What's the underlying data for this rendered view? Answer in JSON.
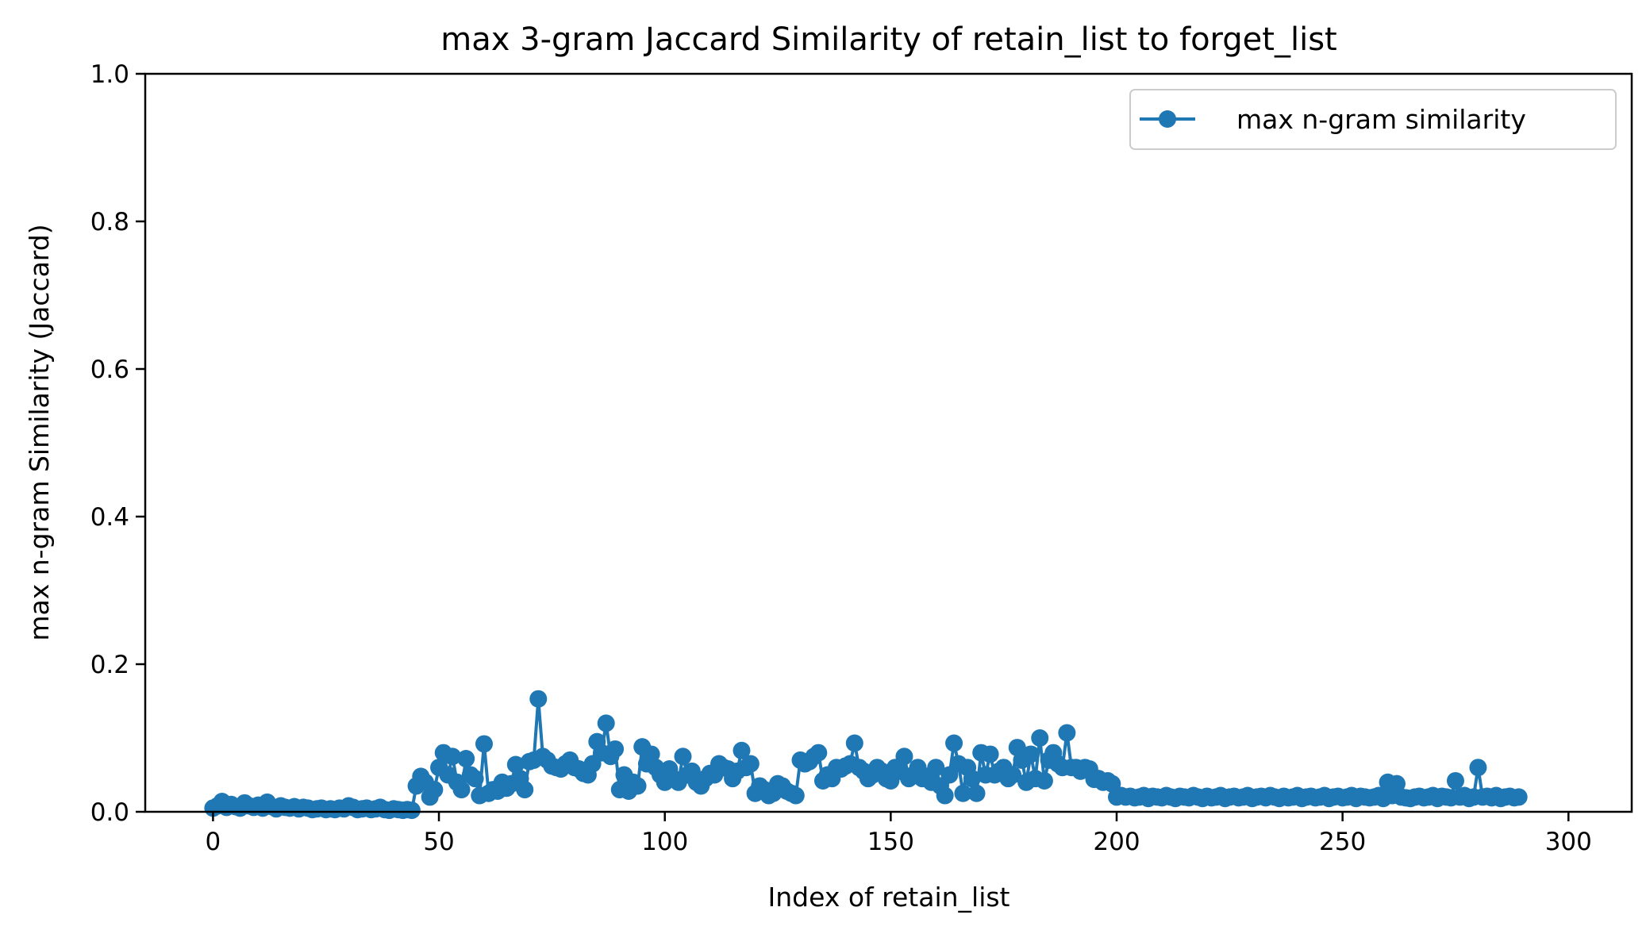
{
  "chart_data": {
    "type": "line",
    "title": "max 3-gram Jaccard Similarity of retain_list to forget_list",
    "xlabel": "Index of retain_list",
    "ylabel": "max n-gram Similarity (Jaccard)",
    "xlim": [
      -15,
      314
    ],
    "ylim": [
      0,
      1.0
    ],
    "xticks": [
      0,
      50,
      100,
      150,
      200,
      250,
      300
    ],
    "xtick_labels": [
      "0",
      "50",
      "100",
      "150",
      "200",
      "250",
      "300"
    ],
    "yticks": [
      0.0,
      0.2,
      0.4,
      0.6,
      0.8,
      1.0
    ],
    "ytick_labels": [
      "0.0",
      "0.2",
      "0.4",
      "0.6",
      "0.8",
      "1.0"
    ],
    "grid": false,
    "legend": {
      "position": "top-right",
      "entries": [
        "max n-gram similarity"
      ]
    },
    "series": [
      {
        "name": "max n-gram similarity",
        "color": "#1f77b4",
        "marker": "circle",
        "x_start": 0,
        "x_step": 1,
        "values": [
          0.005,
          0.008,
          0.014,
          0.006,
          0.01,
          0.007,
          0.005,
          0.012,
          0.008,
          0.006,
          0.009,
          0.005,
          0.013,
          0.007,
          0.004,
          0.008,
          0.006,
          0.005,
          0.007,
          0.004,
          0.006,
          0.005,
          0.003,
          0.004,
          0.005,
          0.003,
          0.004,
          0.003,
          0.005,
          0.004,
          0.008,
          0.006,
          0.003,
          0.004,
          0.005,
          0.003,
          0.004,
          0.006,
          0.003,
          0.002,
          0.004,
          0.003,
          0.002,
          0.003,
          0.002,
          0.035,
          0.048,
          0.04,
          0.02,
          0.03,
          0.06,
          0.08,
          0.05,
          0.075,
          0.04,
          0.03,
          0.072,
          0.05,
          0.045,
          0.022,
          0.092,
          0.025,
          0.03,
          0.028,
          0.04,
          0.032,
          0.038,
          0.064,
          0.045,
          0.03,
          0.068,
          0.07,
          0.153,
          0.075,
          0.07,
          0.062,
          0.06,
          0.058,
          0.065,
          0.07,
          0.06,
          0.058,
          0.052,
          0.05,
          0.065,
          0.095,
          0.08,
          0.12,
          0.075,
          0.085,
          0.03,
          0.05,
          0.028,
          0.04,
          0.035,
          0.088,
          0.065,
          0.078,
          0.06,
          0.05,
          0.04,
          0.058,
          0.045,
          0.04,
          0.075,
          0.05,
          0.055,
          0.04,
          0.035,
          0.045,
          0.052,
          0.05,
          0.065,
          0.06,
          0.058,
          0.045,
          0.055,
          0.083,
          0.06,
          0.065,
          0.025,
          0.035,
          0.03,
          0.022,
          0.025,
          0.038,
          0.035,
          0.028,
          0.025,
          0.022,
          0.07,
          0.065,
          0.068,
          0.075,
          0.08,
          0.042,
          0.05,
          0.045,
          0.06,
          0.058,
          0.062,
          0.065,
          0.093,
          0.06,
          0.055,
          0.045,
          0.05,
          0.06,
          0.055,
          0.045,
          0.042,
          0.06,
          0.055,
          0.075,
          0.045,
          0.05,
          0.06,
          0.045,
          0.048,
          0.04,
          0.06,
          0.035,
          0.022,
          0.05,
          0.093,
          0.065,
          0.025,
          0.06,
          0.045,
          0.025,
          0.08,
          0.05,
          0.078,
          0.05,
          0.055,
          0.06,
          0.045,
          0.05,
          0.087,
          0.07,
          0.04,
          0.078,
          0.045,
          0.1,
          0.042,
          0.07,
          0.08,
          0.065,
          0.06,
          0.107,
          0.06,
          0.06,
          0.055,
          0.06,
          0.058,
          0.044,
          0.045,
          0.04,
          0.042,
          0.038,
          0.02,
          0.022,
          0.02,
          0.021,
          0.019,
          0.02,
          0.022,
          0.018,
          0.021,
          0.02,
          0.019,
          0.022,
          0.02,
          0.018,
          0.021,
          0.02,
          0.019,
          0.022,
          0.02,
          0.018,
          0.021,
          0.019,
          0.02,
          0.022,
          0.018,
          0.02,
          0.021,
          0.019,
          0.02,
          0.022,
          0.018,
          0.02,
          0.021,
          0.019,
          0.022,
          0.02,
          0.018,
          0.021,
          0.019,
          0.02,
          0.022,
          0.018,
          0.02,
          0.021,
          0.019,
          0.02,
          0.022,
          0.018,
          0.02,
          0.021,
          0.019,
          0.02,
          0.022,
          0.018,
          0.021,
          0.02,
          0.019,
          0.02,
          0.022,
          0.018,
          0.04,
          0.022,
          0.038,
          0.02,
          0.019,
          0.018,
          0.02,
          0.021,
          0.019,
          0.02,
          0.022,
          0.018,
          0.021,
          0.02,
          0.019,
          0.042,
          0.02,
          0.022,
          0.018,
          0.02,
          0.06,
          0.02,
          0.021,
          0.019,
          0.022,
          0.018,
          0.02,
          0.021,
          0.019,
          0.02
        ]
      }
    ]
  }
}
